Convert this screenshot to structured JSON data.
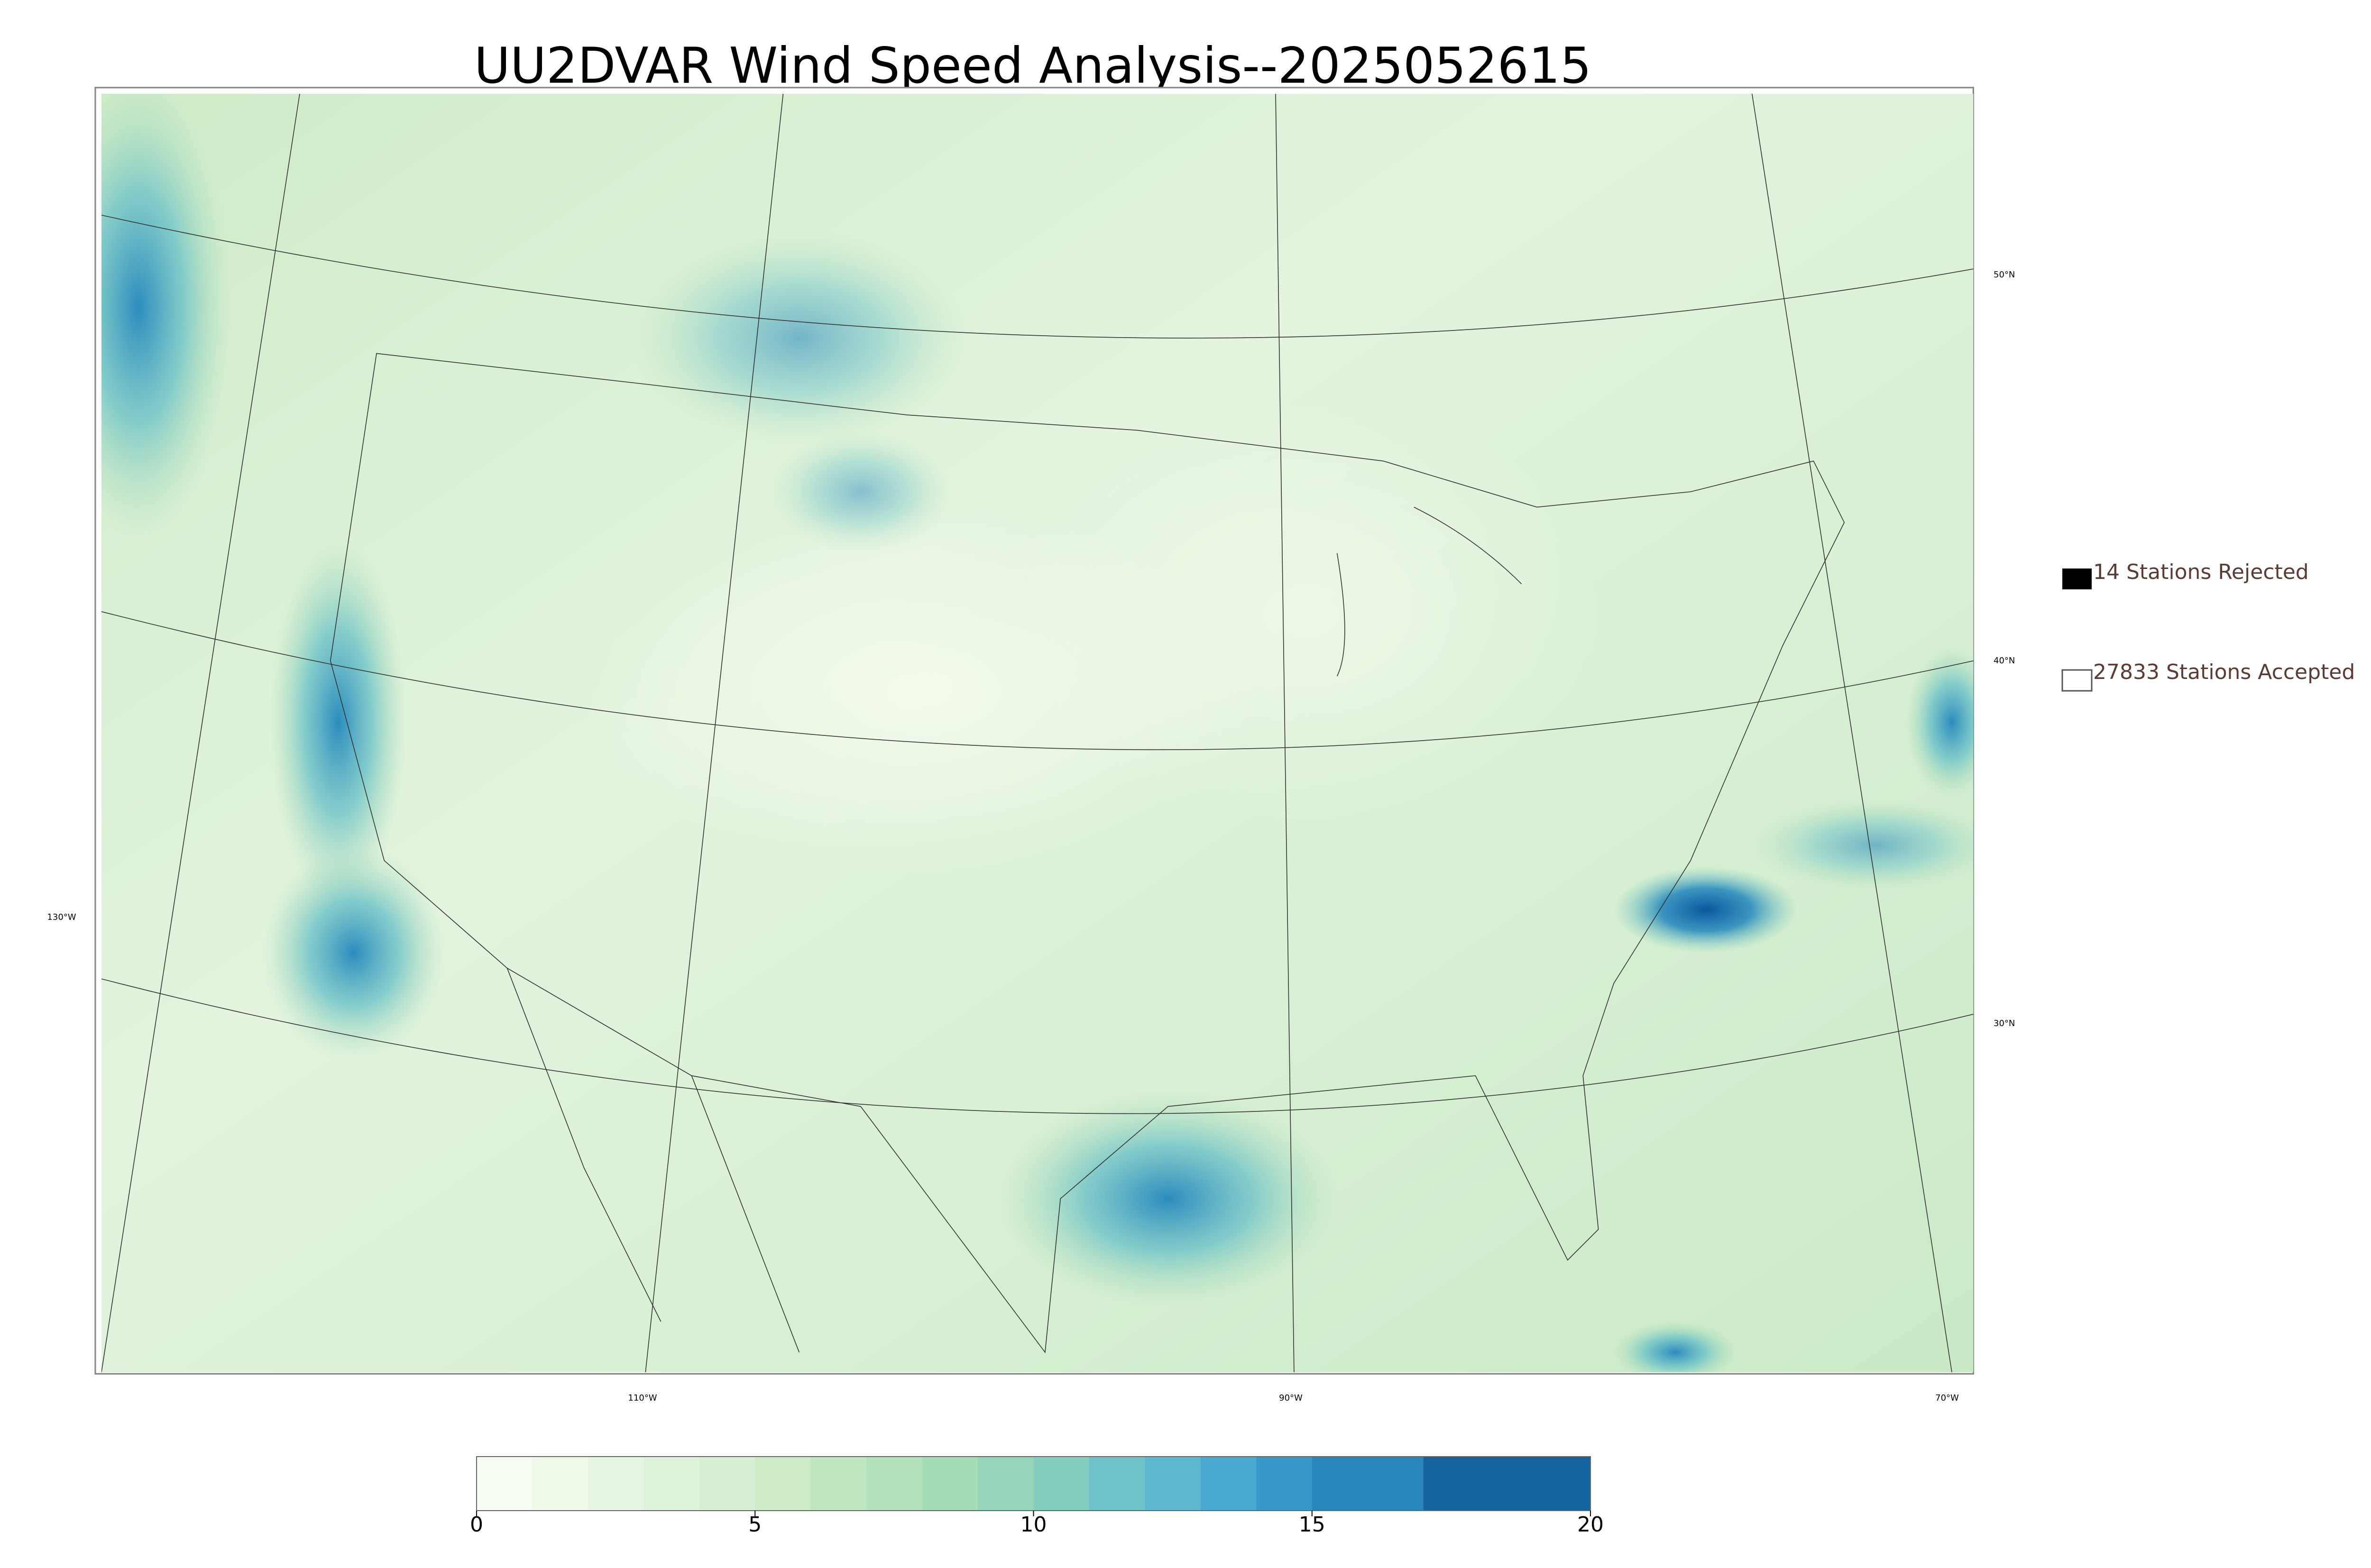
{
  "title": "UU2DVAR Wind Speed Analysis--2025052615",
  "legend": [
    "14 Stations Rejected",
    "27833 Stations Accepted"
  ],
  "graticule_labels": {
    "lat": [
      "50°N",
      "40°N",
      "30°N"
    ],
    "lon": [
      "130°W",
      "110°W",
      "90°W",
      "70°W"
    ]
  },
  "colorbar": {
    "range": [
      0,
      20
    ],
    "ticks": [
      0,
      5,
      10,
      15,
      20
    ],
    "levels": [
      0,
      1,
      2,
      3,
      4,
      5,
      6,
      7,
      8,
      9,
      10,
      11,
      12,
      13,
      14,
      15,
      17,
      20
    ],
    "colors": [
      "#f7fcf0",
      "#eff9ea",
      "#e7f6e3",
      "#dff2dc",
      "#d6efd2",
      "#cdebc7",
      "#c0e6bf",
      "#b3e1b9",
      "#a6dcb5",
      "#95d5ba",
      "#84cebf",
      "#6fc3c8",
      "#5cb8cf",
      "#4aa9d1",
      "#3898c8",
      "#2a87bd",
      "#16649f"
    ]
  }
}
